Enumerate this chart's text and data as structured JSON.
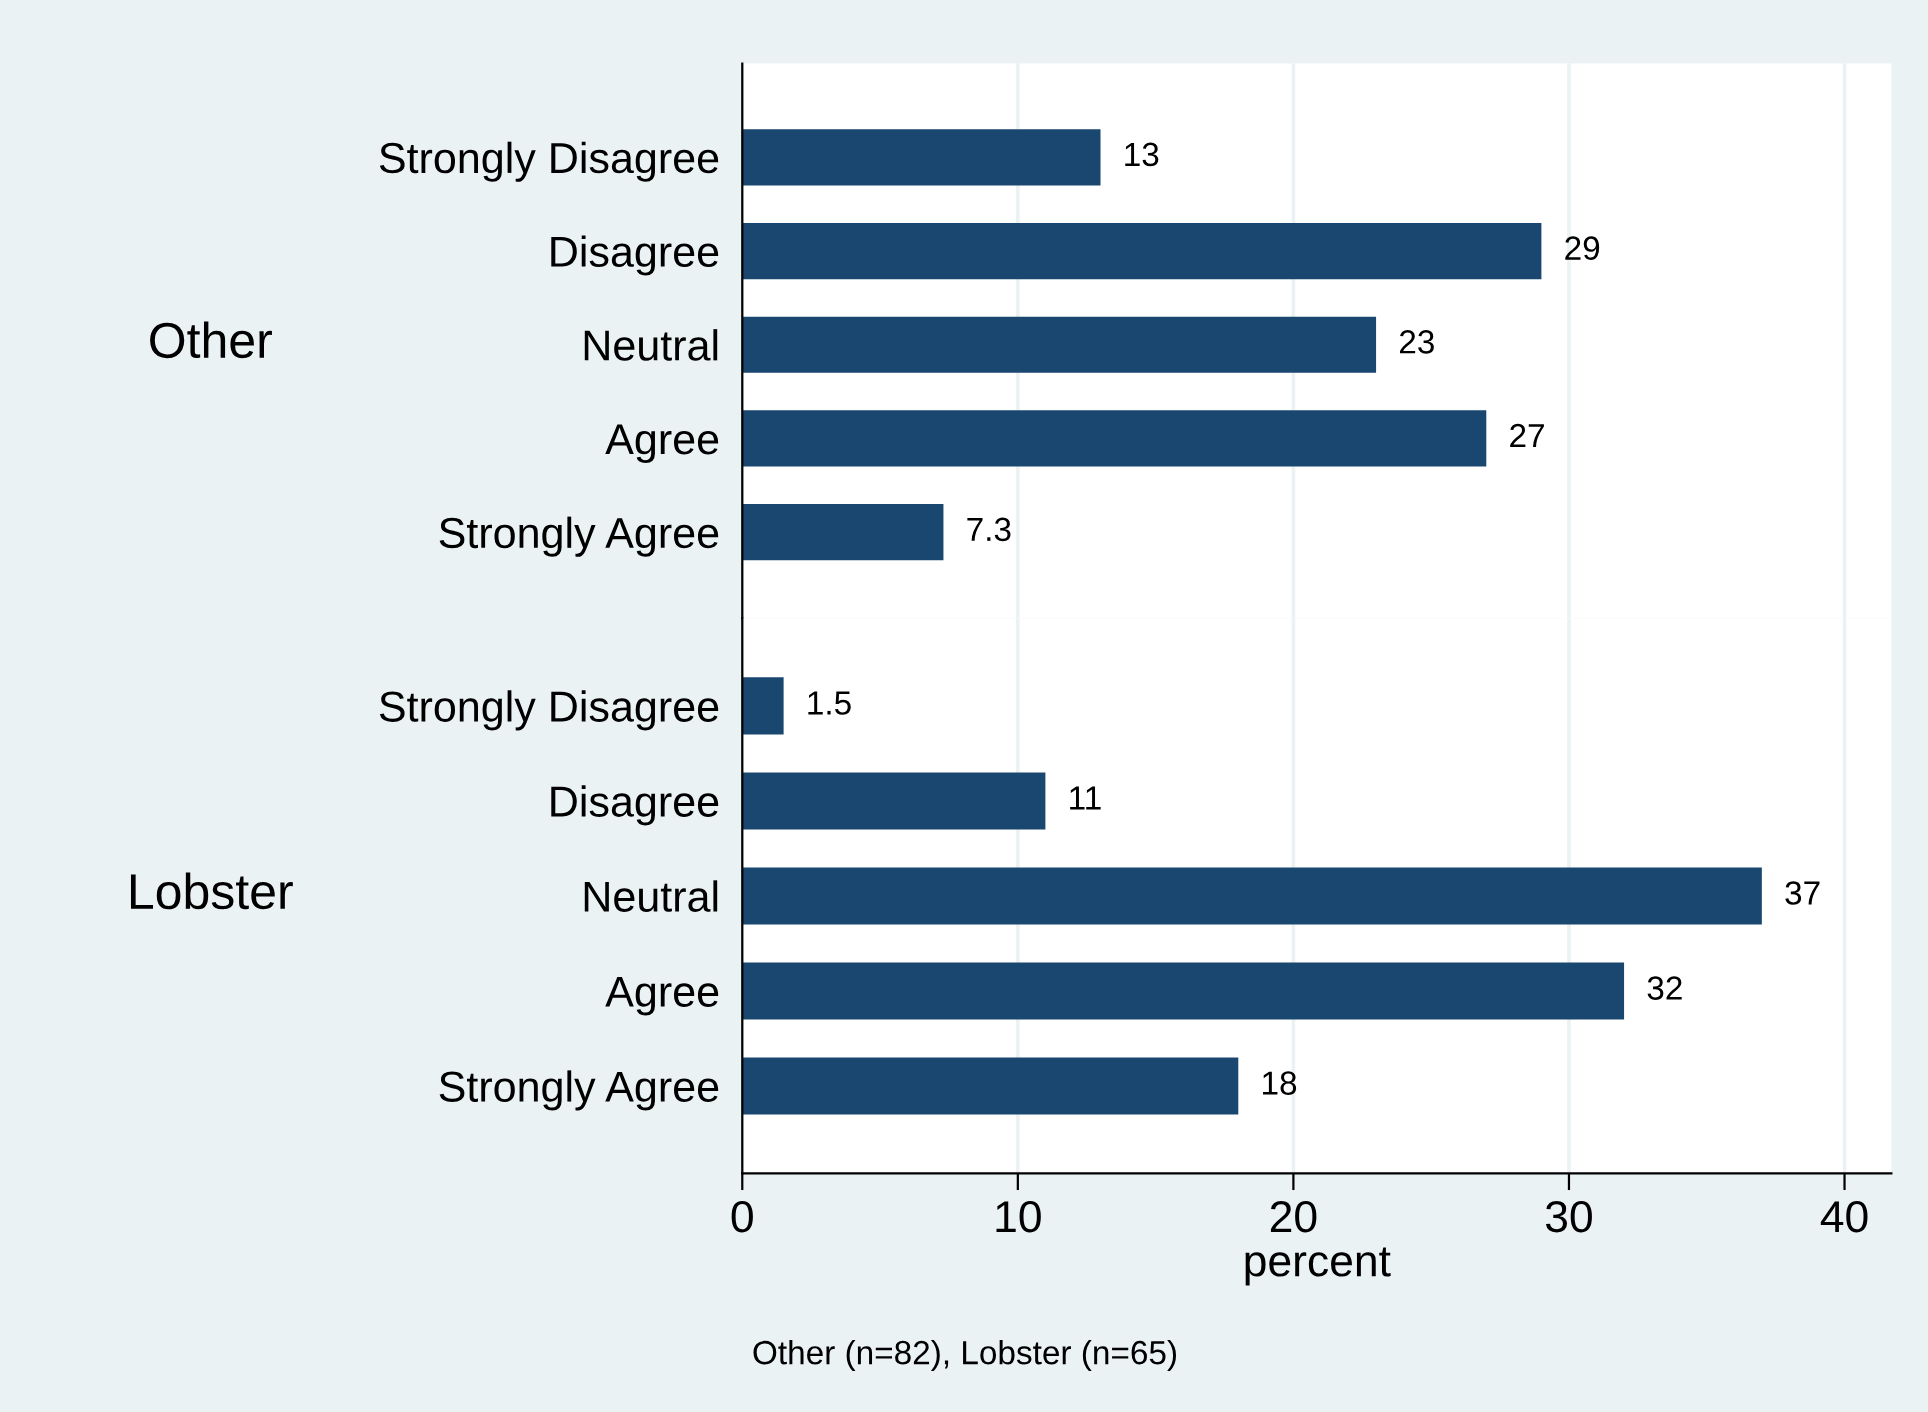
{
  "chart_data": [
    {
      "type": "bar",
      "orientation": "horizontal",
      "ylabel": "Other",
      "categories": [
        "Strongly Disagree",
        "Disagree",
        "Neutral",
        "Agree",
        "Strongly Agree"
      ],
      "values": [
        13,
        29,
        23,
        27,
        7.3
      ],
      "color": "#1a476f",
      "xlim": [
        0,
        41.7
      ],
      "xticks": [
        0,
        10,
        20,
        30,
        40
      ],
      "grid": "x",
      "data_labels": true,
      "tick_labels": "y"
    },
    {
      "type": "bar",
      "orientation": "horizontal",
      "ylabel": "Lobster",
      "xlabel": "percent",
      "categories": [
        "Strongly Disagree",
        "Disagree",
        "Neutral",
        "Agree",
        "Strongly Agree"
      ],
      "values": [
        1.5,
        11,
        37,
        32,
        18
      ],
      "color": "#1a476f",
      "xlim": [
        0,
        41.7
      ],
      "xticks": [
        0,
        10,
        20,
        30,
        40
      ],
      "grid": "x",
      "data_labels": true,
      "annotations": [
        "Other (n=82), Lobster (n=65)"
      ]
    }
  ]
}
